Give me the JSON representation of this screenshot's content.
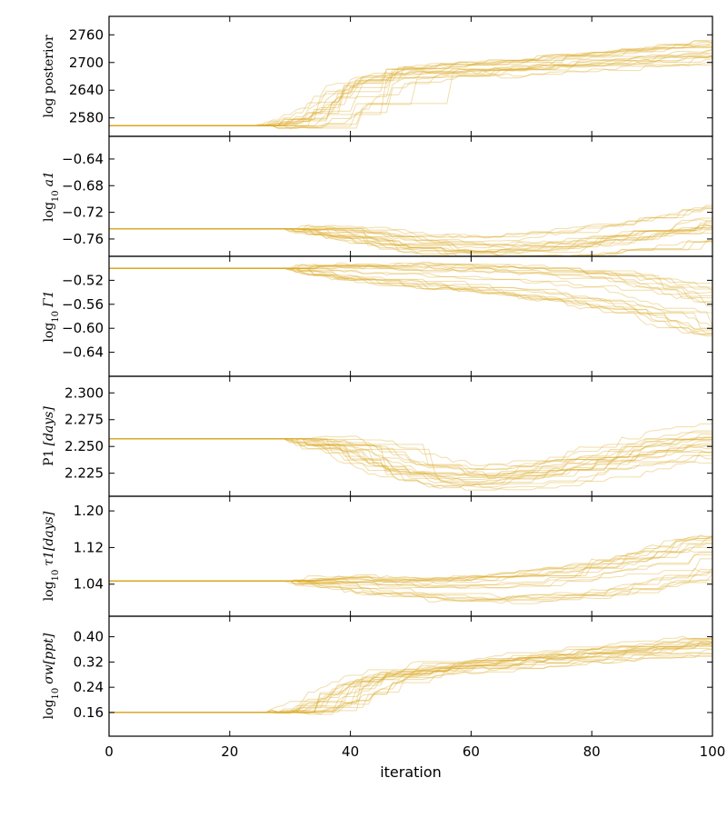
{
  "chart_data": {
    "type": "line",
    "description_free": true,
    "color": "#daa520",
    "walker_opacity": 0.35,
    "n_walkers": 20,
    "xlabel": "iteration",
    "xlim": [
      0,
      100
    ],
    "xticks": [
      0,
      20,
      40,
      60,
      80,
      100
    ],
    "xtick_labels": [
      "0",
      "20",
      "40",
      "60",
      "80",
      "100"
    ],
    "panels": [
      {
        "ylabel_main": "log posterior",
        "ylabel_sub": "",
        "ylabel_rest": "",
        "ylim": [
          2540,
          2800
        ],
        "yticks": [
          2580,
          2640,
          2700,
          2760
        ],
        "ytick_labels": [
          "2580",
          "2640",
          "2700",
          "2760"
        ],
        "series_summary": [
          {
            "x": 0,
            "y": 2563
          },
          {
            "x": 25,
            "y": 2563
          },
          {
            "x": 30,
            "y": 2566
          },
          {
            "x": 35,
            "y": 2590
          },
          {
            "x": 40,
            "y": 2640
          },
          {
            "x": 45,
            "y": 2672
          },
          {
            "x": 50,
            "y": 2680
          },
          {
            "x": 60,
            "y": 2686
          },
          {
            "x": 70,
            "y": 2696
          },
          {
            "x": 80,
            "y": 2706
          },
          {
            "x": 90,
            "y": 2716
          },
          {
            "x": 100,
            "y": 2728
          }
        ],
        "spread_end": 22
      },
      {
        "ylabel_main": "log",
        "ylabel_sub": "10",
        "ylabel_rest": "a1",
        "ylim": [
          -0.786,
          -0.606
        ],
        "yticks": [
          -0.76,
          -0.72,
          -0.68,
          -0.64
        ],
        "ytick_labels": [
          "−0.76",
          "−0.72",
          "−0.68",
          "−0.64"
        ],
        "series_summary": [
          {
            "x": 0,
            "y": -0.745
          },
          {
            "x": 30,
            "y": -0.745
          },
          {
            "x": 40,
            "y": -0.752
          },
          {
            "x": 50,
            "y": -0.766
          },
          {
            "x": 60,
            "y": -0.771
          },
          {
            "x": 70,
            "y": -0.768
          },
          {
            "x": 80,
            "y": -0.758
          },
          {
            "x": 90,
            "y": -0.745
          },
          {
            "x": 100,
            "y": -0.728
          }
        ],
        "spread_end": 0.03
      },
      {
        "ylabel_main": "log",
        "ylabel_sub": "10",
        "ylabel_rest": "Γ1",
        "ylim": [
          -0.68,
          -0.48
        ],
        "yticks": [
          -0.64,
          -0.6,
          -0.56,
          -0.52
        ],
        "ytick_labels": [
          "−0.64",
          "−0.60",
          "−0.56",
          "−0.52"
        ],
        "series_summary": [
          {
            "x": 0,
            "y": -0.5
          },
          {
            "x": 30,
            "y": -0.5
          },
          {
            "x": 40,
            "y": -0.505
          },
          {
            "x": 50,
            "y": -0.51
          },
          {
            "x": 60,
            "y": -0.514
          },
          {
            "x": 70,
            "y": -0.52
          },
          {
            "x": 80,
            "y": -0.53
          },
          {
            "x": 90,
            "y": -0.545
          },
          {
            "x": 100,
            "y": -0.575
          }
        ],
        "spread_end": 0.04
      },
      {
        "ylabel_main": "P1",
        "ylabel_sub": "",
        "ylabel_rest": "[days]",
        "ylim": [
          2.2035,
          2.3155
        ],
        "yticks": [
          2.225,
          2.25,
          2.275,
          2.3
        ],
        "ytick_labels": [
          "2.225",
          "2.250",
          "2.275",
          "2.300"
        ],
        "series_summary": [
          {
            "x": 0,
            "y": 2.257
          },
          {
            "x": 30,
            "y": 2.257
          },
          {
            "x": 40,
            "y": 2.25
          },
          {
            "x": 50,
            "y": 2.23
          },
          {
            "x": 60,
            "y": 2.222
          },
          {
            "x": 70,
            "y": 2.227
          },
          {
            "x": 80,
            "y": 2.238
          },
          {
            "x": 90,
            "y": 2.25
          },
          {
            "x": 100,
            "y": 2.26
          }
        ],
        "spread_end": 0.022
      },
      {
        "ylabel_main": "log",
        "ylabel_sub": "10",
        "ylabel_rest": "τ1[days]",
        "ylim": [
          0.97,
          1.232
        ],
        "yticks": [
          1.04,
          1.12,
          1.2
        ],
        "ytick_labels": [
          "1.04",
          "1.12",
          "1.20"
        ],
        "series_summary": [
          {
            "x": 0,
            "y": 1.047
          },
          {
            "x": 30,
            "y": 1.047
          },
          {
            "x": 40,
            "y": 1.04
          },
          {
            "x": 50,
            "y": 1.03
          },
          {
            "x": 60,
            "y": 1.028
          },
          {
            "x": 70,
            "y": 1.034
          },
          {
            "x": 80,
            "y": 1.048
          },
          {
            "x": 90,
            "y": 1.07
          },
          {
            "x": 100,
            "y": 1.105
          }
        ],
        "spread_end": 0.045
      },
      {
        "ylabel_main": "log",
        "ylabel_sub": "10",
        "ylabel_rest": "σw[ppt]",
        "ylim": [
          0.085,
          0.465
        ],
        "yticks": [
          0.16,
          0.24,
          0.32,
          0.4
        ],
        "ytick_labels": [
          "0.16",
          "0.24",
          "0.32",
          "0.40"
        ],
        "series_summary": [
          {
            "x": 0,
            "y": 0.16
          },
          {
            "x": 27,
            "y": 0.16
          },
          {
            "x": 32,
            "y": 0.165
          },
          {
            "x": 38,
            "y": 0.21
          },
          {
            "x": 45,
            "y": 0.27
          },
          {
            "x": 55,
            "y": 0.3
          },
          {
            "x": 70,
            "y": 0.325
          },
          {
            "x": 85,
            "y": 0.35
          },
          {
            "x": 100,
            "y": 0.375
          }
        ],
        "spread_end": 0.03
      }
    ]
  }
}
